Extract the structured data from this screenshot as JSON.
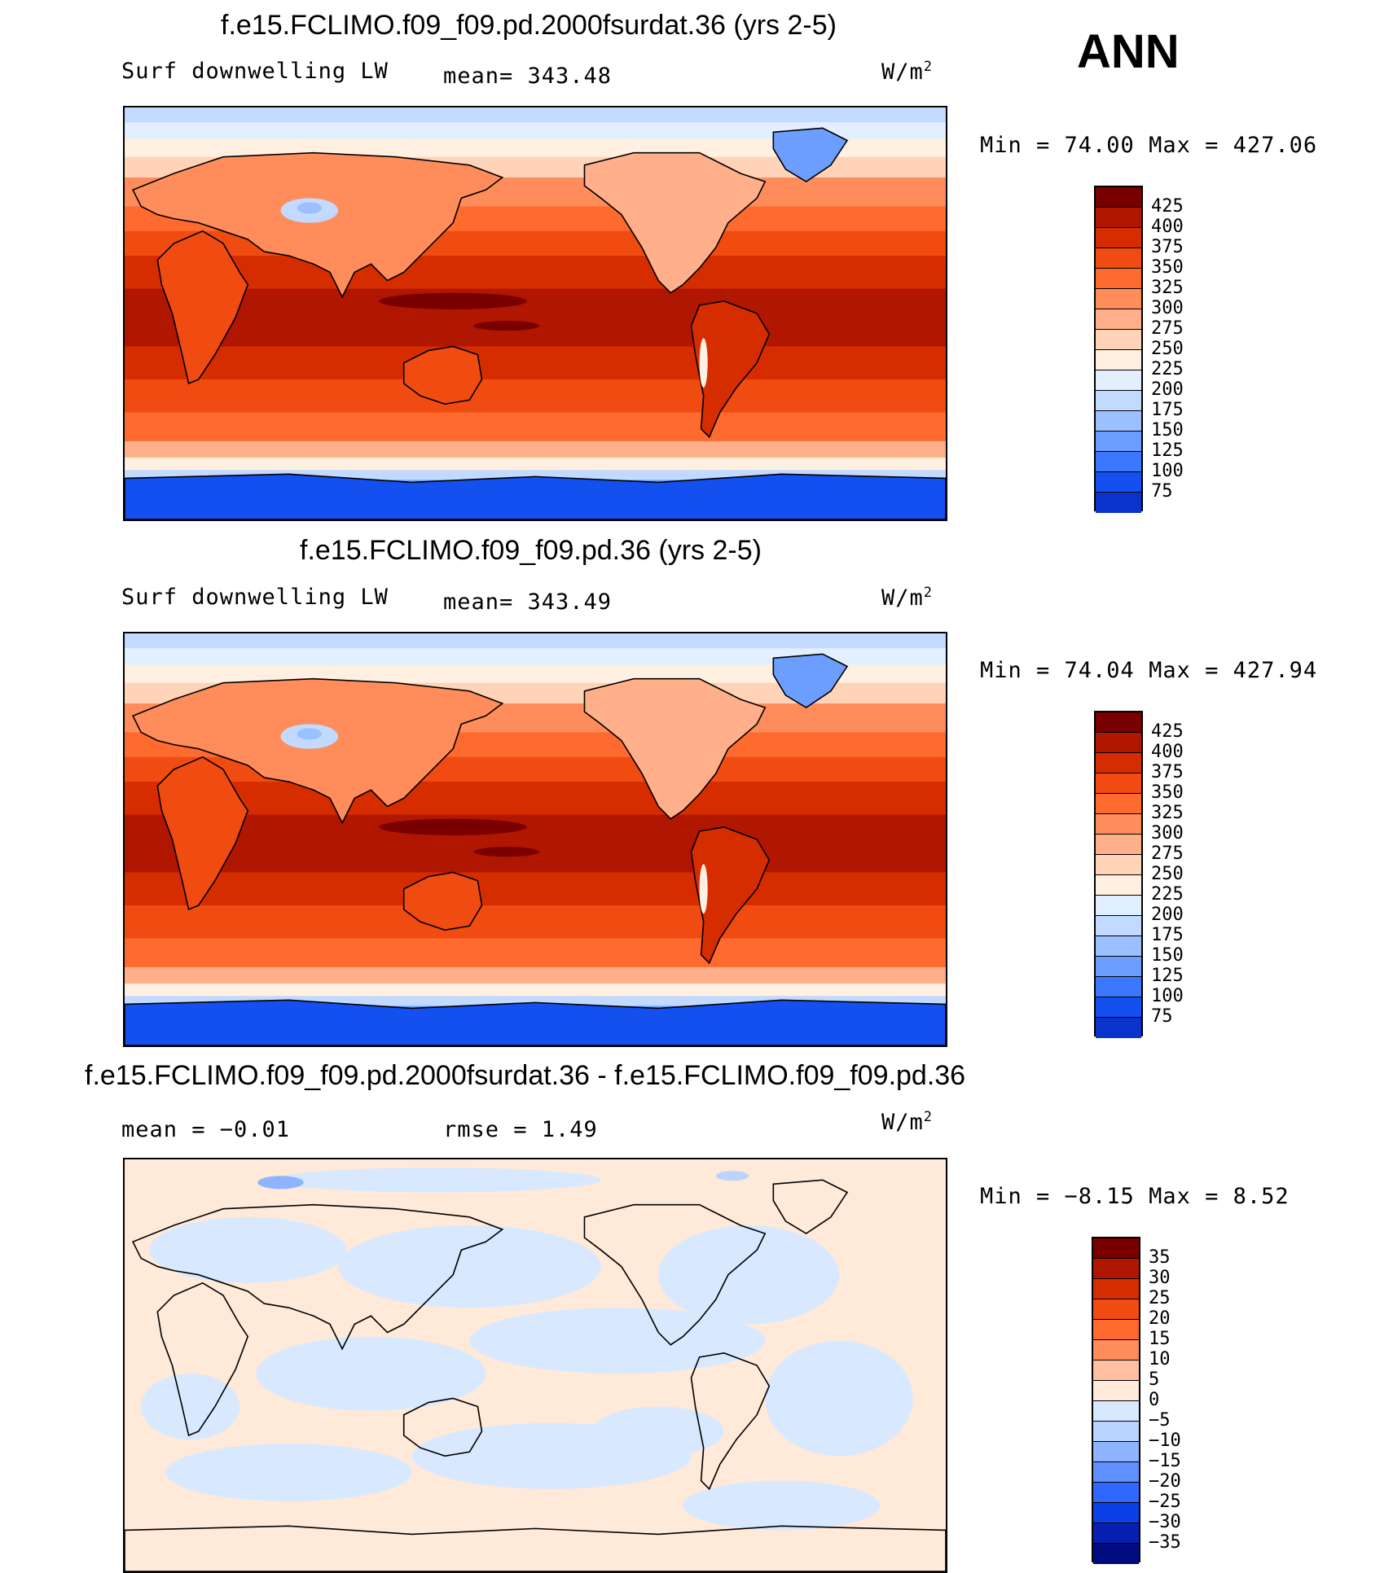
{
  "season": "ANN",
  "panels": [
    {
      "title": "f.e15.FCLIMO.f09_f09.pd.2000fsurdat.36 (yrs 2-5)",
      "left_label": "Surf  downwelling LW",
      "center_label": "mean=  343.48",
      "unit": "W/m",
      "unit_exp": "2",
      "minmax": "Min  =   74.00  Max  =  427.06",
      "colorbar_labels": [
        "425",
        "400",
        "375",
        "350",
        "325",
        "300",
        "275",
        "250",
        "225",
        "200",
        "175",
        "150",
        "125",
        "100",
        "75"
      ]
    },
    {
      "title": "f.e15.FCLIMO.f09_f09.pd.36 (yrs 2-5)",
      "left_label": "Surf  downwelling LW",
      "center_label": "mean=  343.49",
      "unit": "W/m",
      "unit_exp": "2",
      "minmax": "Min  =   74.04  Max  =  427.94",
      "colorbar_labels": [
        "425",
        "400",
        "375",
        "350",
        "325",
        "300",
        "275",
        "250",
        "225",
        "200",
        "175",
        "150",
        "125",
        "100",
        "75"
      ]
    },
    {
      "title": "f.e15.FCLIMO.f09_f09.pd.2000fsurdat.36 - f.e15.FCLIMO.f09_f09.pd.36",
      "left_label": "mean  =   −0.01",
      "center_label": "rmse  =     1.49",
      "unit": "W/m",
      "unit_exp": "2",
      "minmax": "Min  =   −8.15  Max  =     8.52",
      "colorbar_labels": [
        "35",
        "30",
        "25",
        "20",
        "15",
        "10",
        "5",
        "0",
        "−5",
        "−10",
        "−15",
        "−20",
        "−25",
        "−30",
        "−35"
      ]
    }
  ],
  "colors": {
    "abs_palette": [
      "#7a0000",
      "#b01600",
      "#d62d00",
      "#f04b10",
      "#ff6a2e",
      "#ff8d5c",
      "#ffb08a",
      "#ffd3b8",
      "#fff0e2",
      "#e2efff",
      "#c2daff",
      "#9cc0ff",
      "#6c9eff",
      "#3c78ff",
      "#1450f0",
      "#0a32cc",
      "#061ea0",
      "#000a70"
    ],
    "diff_palette": [
      "#7a0000",
      "#b01600",
      "#d62d00",
      "#f04b10",
      "#ff6a2e",
      "#ff8d5c",
      "#ffbfa0",
      "#ffe9d8",
      "#d8e9ff",
      "#b8d4ff",
      "#8fb4ff",
      "#6090ff",
      "#3068ff",
      "#0a40e6",
      "#0620b4",
      "#000c80"
    ],
    "coast": "#000000"
  }
}
